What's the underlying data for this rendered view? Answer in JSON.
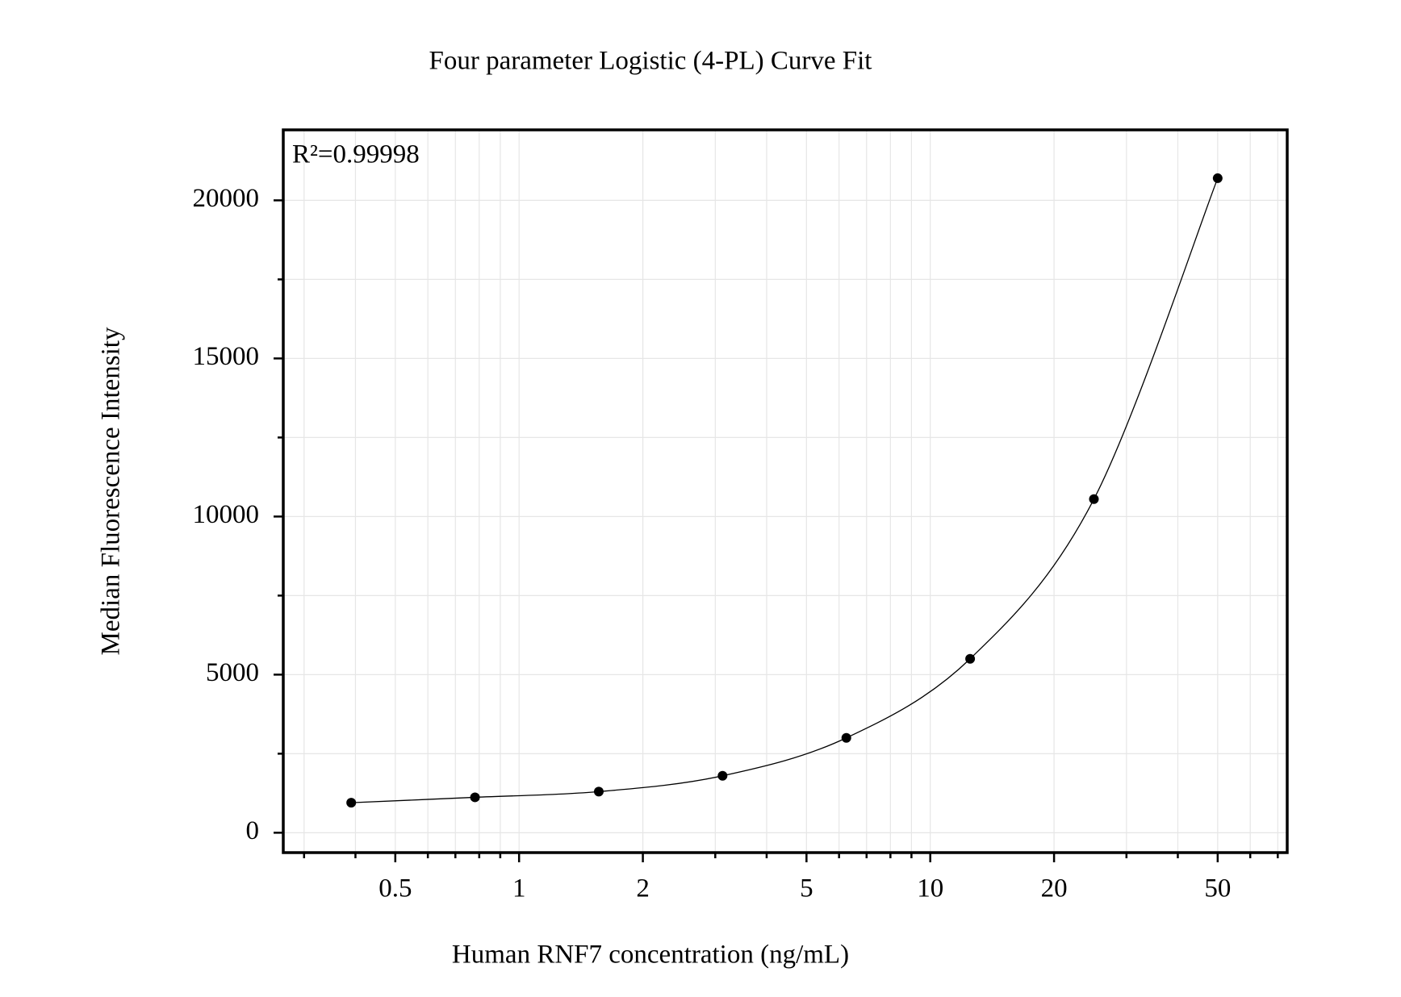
{
  "chart_data": {
    "type": "scatter",
    "title": "Four parameter Logistic (4-PL) Curve Fit",
    "x_label": "Human RNF7 concentration (ng/mL)",
    "y_label": "Median Fluorescence Intensity",
    "annotation": "R²=0.99998",
    "x": [
      0.390625,
      0.78125,
      1.5625,
      3.125,
      6.25,
      12.5,
      25,
      50
    ],
    "series": [
      {
        "color": "#000000",
        "values": [
          950,
          1120,
          1300,
          1800,
          3000,
          5500,
          10550,
          20700
        ]
      }
    ],
    "fit_line": "smooth",
    "xscale": "log",
    "xlim": [
      0.267,
      73.8
    ],
    "xticks": [
      0.5,
      1,
      2,
      5,
      10,
      20,
      50
    ],
    "xminorticks": [
      0.3,
      0.4,
      0.6,
      0.7,
      0.8,
      0.9,
      3,
      4,
      6,
      7,
      8,
      9,
      30,
      40,
      60,
      70
    ],
    "ylim": [
      -629,
      22229
    ],
    "yticks": [
      0,
      5000,
      10000,
      15000,
      20000
    ],
    "yminorticks": [
      2500,
      7500,
      12500,
      17500
    ],
    "grid": true
  }
}
